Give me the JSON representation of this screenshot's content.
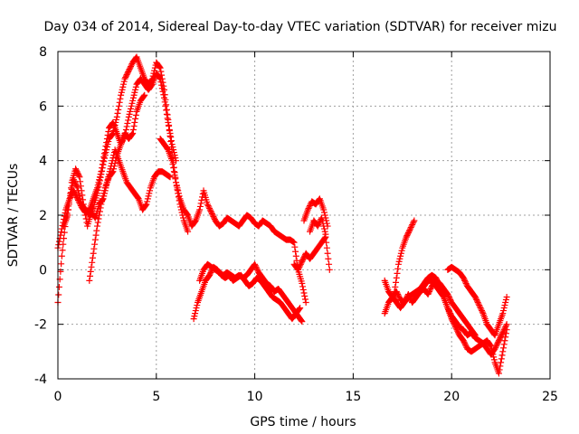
{
  "chart_data": {
    "type": "scatter",
    "title": "Day 034 of 2014, Sidereal Day-to-day VTEC variation (SDTVAR) for receiver mizu",
    "xlabel": "GPS time / hours",
    "ylabel": "SDTVAR / TECUs",
    "xlim": [
      0,
      25
    ],
    "ylim": [
      -4,
      8
    ],
    "xticks": [
      0,
      5,
      10,
      15,
      20,
      25
    ],
    "yticks": [
      -4,
      -2,
      0,
      2,
      4,
      6,
      8
    ],
    "grid": true,
    "marker": "+",
    "color": "#ff0000",
    "series": [
      {
        "name": "trace-a",
        "x": [
          0.0,
          0.2,
          0.4,
          0.6,
          0.8,
          1.0,
          1.2,
          1.4,
          1.6,
          1.8,
          2.0,
          2.2,
          2.4,
          2.6,
          2.8,
          3.0,
          3.2,
          3.4,
          3.6,
          3.8,
          4.0,
          4.2,
          4.4,
          4.6,
          4.8,
          5.0,
          5.2,
          5.4,
          5.6,
          5.8,
          6.0,
          6.2,
          6.4,
          6.6
        ],
        "y": [
          -1.2,
          0.5,
          1.8,
          2.6,
          3.3,
          3.0,
          2.4,
          2.2,
          2.0,
          2.3,
          2.8,
          3.5,
          4.2,
          4.8,
          5.0,
          5.6,
          6.4,
          7.0,
          7.3,
          7.6,
          7.8,
          7.4,
          7.0,
          6.8,
          7.0,
          7.6,
          7.4,
          6.6,
          5.5,
          4.3,
          3.2,
          2.4,
          1.8,
          1.4
        ]
      },
      {
        "name": "trace-b",
        "x": [
          0.0,
          0.2,
          0.4,
          0.6,
          0.8,
          1.0,
          1.2,
          1.4,
          1.6,
          1.8,
          2.0,
          2.2,
          2.4,
          2.6,
          2.8,
          3.0,
          3.2,
          3.4,
          3.6,
          3.8,
          4.0,
          4.2,
          4.4,
          4.6,
          4.8,
          5.0,
          5.2,
          5.4,
          5.6,
          5.8,
          6.0
        ],
        "y": [
          0.8,
          1.5,
          2.2,
          2.6,
          2.9,
          2.6,
          2.3,
          2.1,
          2.2,
          2.6,
          3.0,
          3.6,
          4.4,
          5.2,
          5.4,
          5.0,
          4.6,
          4.9,
          5.6,
          6.2,
          6.8,
          7.0,
          6.8,
          6.6,
          6.8,
          7.2,
          7.0,
          6.3,
          5.4,
          4.6,
          4.0
        ]
      },
      {
        "name": "trace-c",
        "x": [
          0.3,
          0.5,
          0.7,
          0.9,
          1.1,
          1.3,
          1.5,
          1.7,
          1.9,
          2.1,
          2.3,
          2.5,
          2.7,
          2.9,
          3.1,
          3.3,
          3.5,
          3.7,
          3.9,
          4.1,
          4.3,
          4.5,
          4.7,
          4.9,
          5.1,
          5.3,
          5.5,
          5.7
        ],
        "y": [
          1.6,
          2.0,
          3.2,
          3.7,
          3.4,
          2.4,
          1.6,
          2.1,
          1.9,
          2.4,
          2.6,
          3.2,
          3.8,
          4.4,
          4.0,
          3.6,
          3.2,
          3.0,
          2.8,
          2.6,
          2.2,
          2.4,
          3.0,
          3.4,
          3.6,
          3.6,
          3.5,
          3.4
        ]
      },
      {
        "name": "trace-d",
        "x": [
          1.6,
          1.8,
          2.0,
          2.2,
          2.4,
          2.6,
          2.8,
          3.0,
          3.2,
          3.4,
          3.6,
          3.8,
          4.0,
          4.2,
          4.4
        ],
        "y": [
          -0.4,
          0.6,
          1.6,
          2.4,
          3.0,
          3.4,
          3.6,
          4.2,
          4.6,
          5.0,
          4.8,
          5.0,
          5.8,
          6.2,
          6.4
        ]
      },
      {
        "name": "trace-e",
        "x": [
          5.2,
          5.4,
          5.6,
          5.8,
          6.0,
          6.2,
          6.4,
          6.6,
          6.8,
          7.0,
          7.2,
          7.4,
          7.6,
          7.8,
          8.0,
          8.2,
          8.4,
          8.6,
          8.8,
          9.0,
          9.2,
          9.4,
          9.6,
          9.8,
          10.0,
          10.2,
          10.4,
          10.6,
          10.8,
          11.0,
          11.2,
          11.4,
          11.6,
          11.8,
          12.0,
          12.2,
          12.4,
          12.6
        ],
        "y": [
          4.8,
          4.6,
          4.4,
          4.0,
          3.2,
          2.6,
          2.2,
          2.0,
          1.6,
          1.8,
          2.2,
          2.9,
          2.4,
          2.1,
          1.8,
          1.6,
          1.7,
          1.9,
          1.8,
          1.7,
          1.6,
          1.8,
          2.0,
          1.9,
          1.7,
          1.6,
          1.8,
          1.7,
          1.6,
          1.4,
          1.3,
          1.2,
          1.1,
          1.1,
          1.0,
          0.0,
          -0.5,
          -1.2
        ]
      },
      {
        "name": "trace-f",
        "x": [
          6.9,
          7.1,
          7.3,
          7.5,
          7.7,
          7.9,
          8.1,
          8.3,
          8.5,
          8.7,
          8.9,
          9.1,
          9.3,
          9.5,
          9.7,
          9.9,
          10.1,
          10.3,
          10.5,
          10.7,
          10.9,
          11.1,
          11.3,
          11.5,
          11.7,
          11.9,
          12.1,
          12.3
        ],
        "y": [
          -1.8,
          -1.2,
          -0.8,
          -0.4,
          -0.2,
          0.1,
          0.0,
          -0.2,
          -0.3,
          -0.2,
          -0.4,
          -0.3,
          -0.2,
          -0.4,
          -0.6,
          -0.5,
          -0.3,
          -0.4,
          -0.6,
          -0.8,
          -1.0,
          -1.1,
          -1.2,
          -1.4,
          -1.6,
          -1.8,
          -1.6,
          -1.4
        ]
      },
      {
        "name": "trace-g",
        "x": [
          7.2,
          7.4,
          7.6,
          7.8,
          8.0,
          8.2,
          8.4,
          8.6,
          8.8,
          9.0,
          9.2,
          9.4,
          9.6,
          9.8,
          10.0,
          10.2,
          10.4,
          10.6,
          10.8,
          11.0,
          11.2,
          11.4,
          11.6,
          11.8,
          12.0,
          12.2,
          12.4
        ],
        "y": [
          -0.4,
          0.0,
          0.2,
          0.1,
          0.0,
          -0.1,
          -0.2,
          -0.1,
          -0.2,
          -0.3,
          -0.2,
          -0.3,
          -0.2,
          0.0,
          0.2,
          -0.1,
          -0.3,
          -0.5,
          -0.6,
          -0.8,
          -0.7,
          -0.9,
          -1.1,
          -1.3,
          -1.5,
          -1.7,
          -1.9
        ]
      },
      {
        "name": "trace-h",
        "x": [
          12.0,
          12.2,
          12.4,
          12.6,
          12.8,
          13.0,
          13.2,
          13.4,
          13.6,
          13.8
        ],
        "y": [
          0.2,
          0.0,
          0.3,
          0.6,
          0.4,
          0.6,
          0.8,
          1.0,
          1.2,
          0.0
        ]
      },
      {
        "name": "trace-i",
        "x": [
          12.5,
          12.7,
          12.9,
          13.1,
          13.3,
          13.5,
          13.7
        ],
        "y": [
          1.8,
          2.2,
          2.5,
          2.4,
          2.6,
          2.2,
          1.6
        ]
      },
      {
        "name": "trace-j",
        "x": [
          12.8,
          13.0,
          13.2,
          13.4,
          13.6
        ],
        "y": [
          1.4,
          1.8,
          1.6,
          1.9,
          1.3
        ]
      },
      {
        "name": "trace-k",
        "x": [
          16.6,
          16.8,
          17.0,
          17.2,
          17.4,
          17.6,
          17.8,
          18.0,
          18.2,
          18.4,
          18.6,
          18.8,
          19.0,
          19.2,
          19.4,
          19.6,
          19.8,
          20.0,
          20.2,
          20.4,
          20.6,
          20.8,
          21.0,
          21.2,
          21.4,
          21.6,
          21.8,
          22.0,
          22.2,
          22.4,
          22.6,
          22.8
        ],
        "y": [
          -1.6,
          -1.2,
          -1.0,
          -0.8,
          -1.1,
          -1.2,
          -0.9,
          -1.2,
          -1.0,
          -0.8,
          -0.6,
          -0.4,
          -0.4,
          -0.6,
          -0.8,
          -1.0,
          -1.4,
          -1.8,
          -2.1,
          -2.4,
          -2.6,
          -2.9,
          -3.0,
          -2.9,
          -2.8,
          -2.7,
          -2.6,
          -2.8,
          -3.4,
          -3.8,
          -3.0,
          -2.2
        ]
      },
      {
        "name": "trace-l",
        "x": [
          16.6,
          16.8,
          17.0,
          17.2,
          17.4,
          17.6,
          17.8,
          18.0,
          18.2,
          18.4,
          18.6,
          18.8,
          19.0,
          19.2,
          19.4,
          19.6,
          19.8,
          20.0,
          20.2,
          20.4,
          20.6,
          20.8,
          21.0,
          21.2,
          21.4,
          21.6,
          21.8,
          22.0,
          22.2,
          22.4,
          22.6,
          22.8
        ],
        "y": [
          -0.4,
          -0.8,
          -1.0,
          -1.2,
          -1.4,
          -1.2,
          -1.0,
          -0.9,
          -0.8,
          -0.7,
          -0.5,
          -0.3,
          -0.2,
          -0.3,
          -0.6,
          -1.0,
          -1.4,
          -1.7,
          -1.9,
          -2.1,
          -2.2,
          -2.4,
          -2.3,
          -2.5,
          -2.6,
          -2.7,
          -2.9,
          -3.1,
          -2.9,
          -2.6,
          -2.3,
          -2.0
        ]
      },
      {
        "name": "trace-m",
        "x": [
          17.1,
          17.3,
          17.5,
          17.7,
          17.9,
          18.1
        ],
        "y": [
          -0.8,
          0.2,
          0.8,
          1.2,
          1.5,
          1.8
        ]
      },
      {
        "name": "trace-n",
        "x": [
          19.8,
          20.0,
          20.2,
          20.4,
          20.6,
          20.8,
          21.0,
          21.2,
          21.4,
          21.6,
          21.8,
          22.0,
          22.2,
          22.4,
          22.6,
          22.8
        ],
        "y": [
          0.0,
          0.1,
          0.0,
          -0.1,
          -0.3,
          -0.6,
          -0.8,
          -1.0,
          -1.3,
          -1.6,
          -2.0,
          -2.2,
          -2.4,
          -2.0,
          -1.6,
          -1.0
        ]
      },
      {
        "name": "trace-o",
        "x": [
          18.0,
          18.2,
          18.4,
          18.6,
          18.8,
          19.0,
          19.2,
          19.4,
          19.6,
          19.8,
          20.0,
          20.2,
          20.4,
          20.6,
          20.8,
          21.0,
          21.2
        ],
        "y": [
          -1.2,
          -1.0,
          -0.8,
          -0.7,
          -0.9,
          -0.6,
          -0.4,
          -0.5,
          -0.7,
          -0.9,
          -1.2,
          -1.4,
          -1.6,
          -1.8,
          -2.0,
          -2.2,
          -2.4
        ]
      }
    ]
  }
}
